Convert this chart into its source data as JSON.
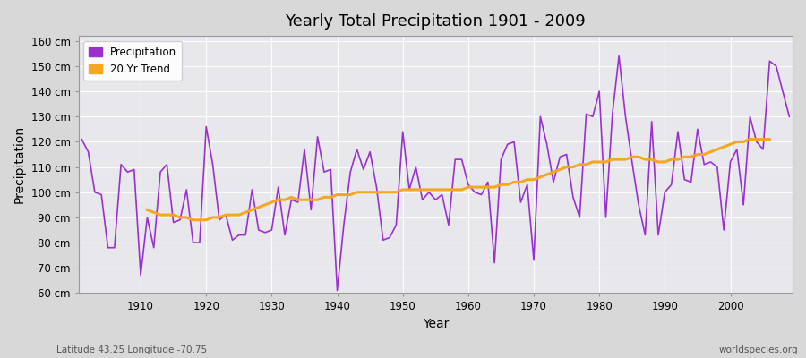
{
  "title": "Yearly Total Precipitation 1901 - 2009",
  "xlabel": "Year",
  "ylabel": "Precipitation",
  "subtitle_left": "Latitude 43.25 Longitude -70.75",
  "subtitle_right": "worldspecies.org",
  "fig_bg_color": "#d8d8d8",
  "plot_bg_color": "#e8e8ec",
  "precip_color": "#9b30d0",
  "trend_color": "#f5a623",
  "ylim": [
    60,
    162
  ],
  "yticks": [
    60,
    70,
    80,
    90,
    100,
    110,
    120,
    130,
    140,
    150,
    160
  ],
  "ytick_labels": [
    "60 cm",
    "70 cm",
    "80 cm",
    "90 cm",
    "100 cm",
    "110 cm",
    "120 cm",
    "130 cm",
    "140 cm",
    "150 cm",
    "160 cm"
  ],
  "xticks": [
    1910,
    1920,
    1930,
    1940,
    1950,
    1960,
    1970,
    1980,
    1990,
    2000
  ],
  "years": [
    1901,
    1902,
    1903,
    1904,
    1905,
    1906,
    1907,
    1908,
    1909,
    1910,
    1911,
    1912,
    1913,
    1914,
    1915,
    1916,
    1917,
    1918,
    1919,
    1920,
    1921,
    1922,
    1923,
    1924,
    1925,
    1926,
    1927,
    1928,
    1929,
    1930,
    1931,
    1932,
    1933,
    1934,
    1935,
    1936,
    1937,
    1938,
    1939,
    1940,
    1941,
    1942,
    1943,
    1944,
    1945,
    1946,
    1947,
    1948,
    1949,
    1950,
    1951,
    1952,
    1953,
    1954,
    1955,
    1956,
    1957,
    1958,
    1959,
    1960,
    1961,
    1962,
    1963,
    1964,
    1965,
    1966,
    1967,
    1968,
    1969,
    1970,
    1971,
    1972,
    1973,
    1974,
    1975,
    1976,
    1977,
    1978,
    1979,
    1980,
    1981,
    1982,
    1983,
    1984,
    1985,
    1986,
    1987,
    1988,
    1989,
    1990,
    1991,
    1992,
    1993,
    1994,
    1995,
    1996,
    1997,
    1998,
    1999,
    2000,
    2001,
    2002,
    2003,
    2004,
    2005,
    2006,
    2007,
    2008,
    2009
  ],
  "precip": [
    121,
    116,
    100,
    99,
    78,
    78,
    111,
    108,
    109,
    67,
    90,
    78,
    108,
    111,
    88,
    89,
    101,
    80,
    80,
    126,
    111,
    89,
    91,
    81,
    83,
    83,
    101,
    85,
    84,
    85,
    102,
    83,
    97,
    96,
    117,
    93,
    122,
    108,
    109,
    61,
    87,
    108,
    117,
    109,
    116,
    102,
    81,
    82,
    87,
    124,
    101,
    110,
    97,
    100,
    97,
    99,
    87,
    113,
    113,
    103,
    100,
    99,
    104,
    72,
    113,
    119,
    120,
    96,
    103,
    73,
    130,
    119,
    104,
    114,
    115,
    98,
    90,
    131,
    130,
    140,
    90,
    131,
    154,
    130,
    112,
    95,
    83,
    128,
    83,
    100,
    103,
    124,
    105,
    104,
    125,
    111,
    112,
    110,
    85,
    112,
    117,
    95,
    130,
    120,
    117,
    152,
    150,
    140,
    130
  ],
  "trend": [
    null,
    null,
    null,
    null,
    null,
    null,
    null,
    null,
    null,
    null,
    93,
    92,
    91,
    91,
    91,
    90,
    90,
    89,
    89,
    89,
    90,
    90,
    91,
    91,
    91,
    92,
    93,
    94,
    95,
    96,
    97,
    97,
    98,
    97,
    97,
    97,
    97,
    98,
    98,
    99,
    99,
    99,
    100,
    100,
    100,
    100,
    100,
    100,
    100,
    101,
    101,
    101,
    101,
    101,
    101,
    101,
    101,
    101,
    101,
    102,
    102,
    102,
    102,
    102,
    103,
    103,
    104,
    104,
    105,
    105,
    106,
    107,
    108,
    109,
    110,
    110,
    111,
    111,
    112,
    112,
    112,
    113,
    113,
    113,
    114,
    114,
    113,
    113,
    112,
    112,
    113,
    113,
    114,
    114,
    115,
    115,
    116,
    117,
    118,
    119,
    120,
    120,
    121,
    121,
    121,
    121,
    null,
    null,
    null
  ]
}
